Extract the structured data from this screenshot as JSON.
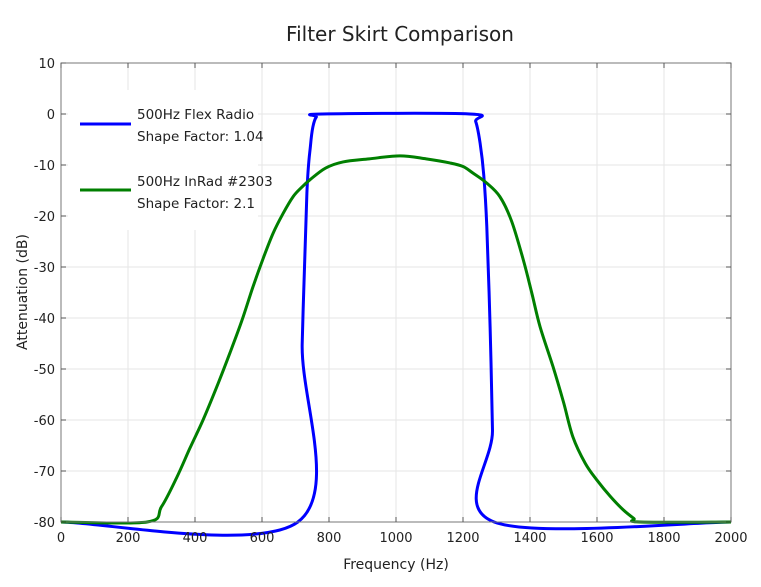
{
  "chart_data": {
    "type": "line",
    "title": "Filter Skirt Comparison",
    "xlabel": "Frequency (Hz)",
    "ylabel": "Attenuation (dB)",
    "xlim": [
      0,
      2000
    ],
    "ylim": [
      -80,
      10
    ],
    "xticks": [
      0,
      200,
      400,
      600,
      800,
      1000,
      1200,
      1400,
      1600,
      1800,
      2000
    ],
    "yticks": [
      10,
      0,
      -10,
      -20,
      -30,
      -40,
      -50,
      -60,
      -70,
      -80
    ],
    "grid": true,
    "legend_position": "top-left",
    "series": [
      {
        "name": "500Hz Flex Radio",
        "subtitle": "Shape Factor: 1.04",
        "color": "#0000ff",
        "x": [
          0,
          707,
          720,
          734,
          745,
          752,
          762,
          780,
          1220,
          1238,
          1251,
          1262,
          1271,
          1281,
          1288,
          1293,
          2000
        ],
        "y": [
          -80,
          -80,
          -45,
          -15.5,
          -6,
          -2.5,
          -0.6,
          0,
          0,
          -1.5,
          -5.7,
          -12,
          -22,
          -42,
          -62,
          -80,
          -80
        ]
      },
      {
        "name": "500Hz InRad #2303",
        "subtitle": "Shape Factor: 2.1",
        "color": "#007f00",
        "x": [
          0,
          257,
          300,
          346,
          385,
          424,
          465,
          504,
          540,
          573,
          603,
          633,
          663,
          693,
          718,
          743,
          790,
          842,
          920,
          1012,
          1090,
          1161,
          1200,
          1230,
          1270,
          1310,
          1345,
          1380,
          1405,
          1430,
          1469,
          1500,
          1528,
          1565,
          1600,
          1640,
          1678,
          1710,
          1728,
          2000
        ],
        "y": [
          -80,
          -80,
          -77,
          -71.2,
          -65.5,
          -60,
          -53.5,
          -46.9,
          -40.5,
          -33.9,
          -28.4,
          -23.4,
          -19.5,
          -16.2,
          -14.4,
          -12.9,
          -10.6,
          -9.4,
          -8.8,
          -8.2,
          -8.8,
          -9.6,
          -10.3,
          -11.6,
          -13.5,
          -16.2,
          -21,
          -28.6,
          -35,
          -41.7,
          -49.6,
          -56.5,
          -63.3,
          -68.5,
          -71.8,
          -75,
          -77.6,
          -79.3,
          -80,
          -80
        ]
      }
    ]
  }
}
